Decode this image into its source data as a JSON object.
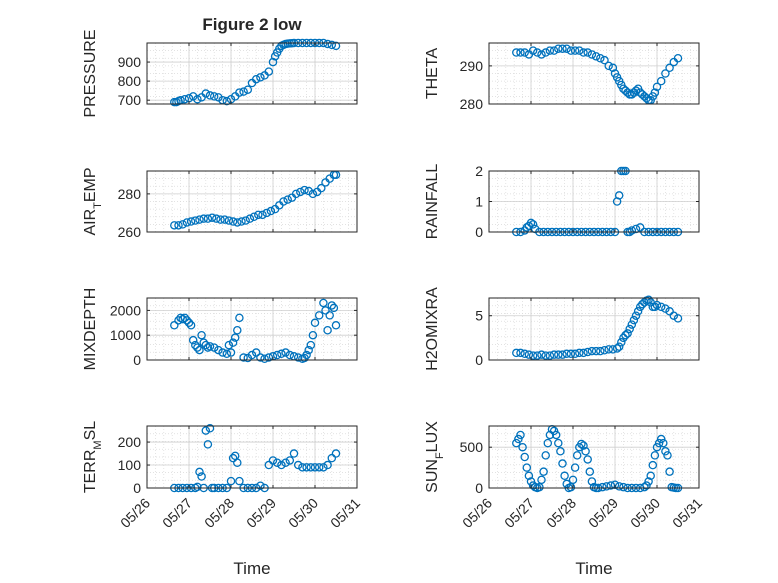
{
  "figure": {
    "title": "Figure 2 low",
    "xlabel": "Time",
    "marker_color": "#0072BD",
    "x_ticks": [
      "05/26",
      "05/27",
      "05/28",
      "05/29",
      "05/30",
      "05/31"
    ]
  },
  "chart_data": [
    {
      "type": "scatter",
      "ylabel": "PRESSURE",
      "ylim": [
        680,
        1000
      ],
      "yticks": [
        700,
        800,
        900
      ],
      "grid": true,
      "x": [
        0.65,
        0.7,
        0.75,
        0.8,
        0.9,
        1.0,
        1.1,
        1.2,
        1.3,
        1.4,
        1.5,
        1.6,
        1.7,
        1.8,
        1.9,
        2.0,
        2.1,
        2.2,
        2.3,
        2.4,
        2.5,
        2.6,
        2.7,
        2.8,
        2.9,
        3.0,
        3.05,
        3.1,
        3.15,
        3.2,
        3.25,
        3.3,
        3.35,
        3.4,
        3.45,
        3.5,
        3.6,
        3.7,
        3.8,
        3.9,
        4.0,
        4.1,
        4.2,
        4.3,
        4.4,
        4.5
      ],
      "y": [
        690,
        690,
        695,
        700,
        705,
        710,
        720,
        705,
        715,
        735,
        725,
        720,
        715,
        700,
        695,
        705,
        720,
        740,
        745,
        755,
        790,
        810,
        820,
        830,
        850,
        900,
        930,
        950,
        970,
        985,
        990,
        995,
        997,
        998,
        999,
        1000,
        1000,
        1000,
        1000,
        1000,
        1000,
        1000,
        1000,
        995,
        990,
        985
      ]
    },
    {
      "type": "scatter",
      "ylabel": "THETA",
      "ylim": [
        280,
        296
      ],
      "yticks": [
        280,
        290
      ],
      "grid": true,
      "x": [
        0.65,
        0.75,
        0.85,
        0.95,
        1.05,
        1.15,
        1.25,
        1.35,
        1.45,
        1.55,
        1.65,
        1.75,
        1.85,
        1.95,
        2.05,
        2.15,
        2.25,
        2.35,
        2.45,
        2.55,
        2.65,
        2.75,
        2.85,
        2.95,
        3.0,
        3.05,
        3.1,
        3.15,
        3.2,
        3.25,
        3.3,
        3.35,
        3.4,
        3.45,
        3.5,
        3.55,
        3.6,
        3.65,
        3.7,
        3.75,
        3.8,
        3.85,
        3.9,
        3.95,
        4.0,
        4.1,
        4.2,
        4.3,
        4.4,
        4.5
      ],
      "y": [
        293.5,
        293.5,
        293.5,
        293,
        294,
        293.5,
        293,
        293.5,
        294,
        294,
        294.5,
        294.5,
        294.5,
        294,
        294,
        294,
        293.5,
        293.5,
        293,
        292.5,
        292,
        291.5,
        290,
        289.5,
        288,
        287,
        286,
        285,
        284,
        283.5,
        283,
        282.5,
        282.5,
        283,
        283.5,
        284,
        283,
        282.5,
        282,
        281.5,
        281,
        281,
        282,
        283,
        284.5,
        286,
        288,
        289.5,
        291,
        292
      ]
    },
    {
      "type": "scatter",
      "ylabel": "AIR_TEMP",
      "ylim": [
        260,
        292
      ],
      "yticks": [
        260,
        280
      ],
      "grid": true,
      "x": [
        0.65,
        0.75,
        0.85,
        0.95,
        1.05,
        1.15,
        1.25,
        1.35,
        1.45,
        1.55,
        1.65,
        1.75,
        1.85,
        1.95,
        2.05,
        2.15,
        2.25,
        2.35,
        2.45,
        2.55,
        2.65,
        2.75,
        2.85,
        2.95,
        3.05,
        3.15,
        3.25,
        3.35,
        3.45,
        3.55,
        3.65,
        3.75,
        3.85,
        3.95,
        4.05,
        4.15,
        4.25,
        4.35,
        4.45,
        4.5
      ],
      "y": [
        263.5,
        263.5,
        264,
        265,
        265.5,
        266,
        266.5,
        267,
        267,
        267.5,
        267,
        266.5,
        266.5,
        266,
        265.5,
        265,
        265.5,
        266,
        267,
        268,
        269,
        269,
        270,
        271,
        272,
        274,
        276,
        277,
        278,
        280,
        281,
        282,
        281.5,
        280,
        281,
        283,
        286,
        288,
        290,
        290
      ]
    },
    {
      "type": "scatter",
      "ylabel": "RAINFALL",
      "ylim": [
        0,
        2
      ],
      "yticks": [
        0,
        1,
        2
      ],
      "grid": true,
      "x": [
        0.65,
        0.75,
        0.85,
        0.9,
        0.95,
        1.0,
        1.05,
        1.1,
        1.2,
        1.3,
        1.4,
        1.5,
        1.6,
        1.7,
        1.8,
        1.9,
        2.0,
        2.1,
        2.2,
        2.3,
        2.4,
        2.5,
        2.6,
        2.7,
        2.8,
        2.9,
        3.0,
        3.05,
        3.1,
        3.15,
        3.2,
        3.25,
        3.3,
        3.35,
        3.4,
        3.5,
        3.6,
        3.7,
        3.8,
        3.9,
        4.0,
        4.1,
        4.2,
        4.3,
        4.4,
        4.5
      ],
      "y": [
        0,
        0,
        0.05,
        0.15,
        0.2,
        0.3,
        0.25,
        0.1,
        0,
        0,
        0,
        0,
        0,
        0,
        0,
        0,
        0,
        0,
        0,
        0,
        0,
        0,
        0,
        0,
        0,
        0,
        0,
        1,
        1.2,
        2,
        2,
        2,
        0,
        0,
        0.05,
        0.1,
        0.15,
        0,
        0,
        0,
        0,
        0,
        0,
        0,
        0,
        0
      ]
    },
    {
      "type": "scatter",
      "ylabel": "MIXDEPTH",
      "ylim": [
        0,
        2500
      ],
      "yticks": [
        0,
        1000,
        2000
      ],
      "grid": true,
      "x": [
        0.65,
        0.75,
        0.8,
        0.85,
        0.9,
        0.95,
        1.0,
        1.05,
        1.1,
        1.15,
        1.2,
        1.25,
        1.3,
        1.35,
        1.4,
        1.45,
        1.5,
        1.6,
        1.7,
        1.8,
        1.9,
        1.95,
        2.0,
        2.05,
        2.1,
        2.15,
        2.2,
        2.3,
        2.4,
        2.5,
        2.6,
        2.7,
        2.8,
        2.9,
        3.0,
        3.1,
        3.2,
        3.3,
        3.4,
        3.5,
        3.6,
        3.7,
        3.75,
        3.8,
        3.85,
        3.9,
        3.95,
        4.0,
        4.1,
        4.2,
        4.25,
        4.3,
        4.35,
        4.4,
        4.45,
        4.5
      ],
      "y": [
        1400,
        1600,
        1700,
        1650,
        1700,
        1600,
        1500,
        1400,
        800,
        600,
        500,
        400,
        1000,
        700,
        600,
        500,
        550,
        500,
        400,
        300,
        250,
        600,
        300,
        700,
        900,
        1200,
        1700,
        100,
        80,
        200,
        300,
        100,
        50,
        100,
        150,
        200,
        250,
        300,
        200,
        150,
        100,
        50,
        80,
        200,
        400,
        600,
        1000,
        1500,
        1800,
        2300,
        2000,
        1200,
        1800,
        2200,
        2100,
        1400
      ]
    },
    {
      "type": "scatter",
      "ylabel": "H2OMIXRA",
      "ylim": [
        0,
        7
      ],
      "yticks": [
        0,
        5
      ],
      "grid": true,
      "x": [
        0.65,
        0.75,
        0.85,
        0.95,
        1.05,
        1.15,
        1.25,
        1.35,
        1.45,
        1.55,
        1.65,
        1.75,
        1.85,
        1.95,
        2.05,
        2.15,
        2.25,
        2.35,
        2.45,
        2.55,
        2.65,
        2.75,
        2.85,
        2.95,
        3.05,
        3.1,
        3.15,
        3.2,
        3.25,
        3.3,
        3.35,
        3.4,
        3.45,
        3.5,
        3.55,
        3.6,
        3.65,
        3.7,
        3.75,
        3.8,
        3.85,
        3.9,
        3.95,
        4.0,
        4.1,
        4.2,
        4.3,
        4.4,
        4.5
      ],
      "y": [
        0.8,
        0.8,
        0.7,
        0.6,
        0.5,
        0.5,
        0.6,
        0.5,
        0.5,
        0.6,
        0.6,
        0.6,
        0.7,
        0.7,
        0.7,
        0.8,
        0.8,
        0.9,
        1.0,
        1.0,
        1.0,
        1.1,
        1.2,
        1.2,
        1.3,
        1.5,
        2.0,
        2.5,
        2.8,
        3.0,
        3.5,
        4.0,
        4.5,
        5.0,
        5.5,
        6.0,
        6.3,
        6.5,
        6.7,
        6.8,
        6.5,
        6.0,
        6.0,
        6.2,
        6.0,
        5.8,
        5.5,
        5.0,
        4.7
      ]
    },
    {
      "type": "scatter",
      "ylabel": "TERR_MSL",
      "ylim": [
        0,
        270
      ],
      "yticks": [
        0,
        100,
        200
      ],
      "grid": true,
      "x": [
        0.65,
        0.75,
        0.85,
        0.95,
        1.05,
        1.15,
        1.2,
        1.25,
        1.3,
        1.35,
        1.4,
        1.45,
        1.5,
        1.55,
        1.6,
        1.7,
        1.8,
        1.9,
        2.0,
        2.05,
        2.1,
        2.15,
        2.2,
        2.3,
        2.4,
        2.5,
        2.6,
        2.7,
        2.8,
        2.9,
        3.0,
        3.1,
        3.2,
        3.3,
        3.4,
        3.5,
        3.6,
        3.7,
        3.8,
        3.9,
        4.0,
        4.1,
        4.2,
        4.3,
        4.4,
        4.5
      ],
      "y": [
        0,
        0,
        0,
        0,
        0,
        0,
        5,
        70,
        50,
        0,
        250,
        190,
        260,
        0,
        0,
        0,
        0,
        0,
        30,
        130,
        140,
        110,
        30,
        0,
        0,
        0,
        0,
        10,
        0,
        100,
        120,
        110,
        100,
        110,
        120,
        150,
        100,
        90,
        90,
        90,
        90,
        90,
        90,
        100,
        130,
        150
      ]
    },
    {
      "type": "scatter",
      "ylabel": "SUN_FLUX",
      "ylim": [
        0,
        760
      ],
      "yticks": [
        0,
        500
      ],
      "grid": true,
      "x": [
        0.65,
        0.7,
        0.75,
        0.8,
        0.85,
        0.9,
        0.95,
        1.0,
        1.05,
        1.1,
        1.15,
        1.2,
        1.25,
        1.3,
        1.35,
        1.4,
        1.45,
        1.5,
        1.55,
        1.6,
        1.65,
        1.7,
        1.75,
        1.8,
        1.85,
        1.9,
        1.95,
        2.0,
        2.05,
        2.1,
        2.15,
        2.2,
        2.25,
        2.3,
        2.35,
        2.4,
        2.45,
        2.5,
        2.55,
        2.6,
        2.7,
        2.8,
        2.9,
        3.0,
        3.1,
        3.2,
        3.3,
        3.4,
        3.5,
        3.6,
        3.7,
        3.75,
        3.8,
        3.85,
        3.9,
        3.95,
        4.0,
        4.05,
        4.1,
        4.15,
        4.2,
        4.25,
        4.3,
        4.35,
        4.4,
        4.45,
        4.5
      ],
      "y": [
        550,
        600,
        650,
        500,
        380,
        250,
        150,
        80,
        30,
        10,
        0,
        10,
        100,
        200,
        400,
        550,
        650,
        720,
        700,
        650,
        550,
        450,
        300,
        150,
        50,
        0,
        10,
        100,
        250,
        400,
        500,
        540,
        520,
        450,
        350,
        200,
        80,
        10,
        0,
        0,
        10,
        20,
        30,
        40,
        20,
        10,
        0,
        0,
        0,
        0,
        10,
        30,
        80,
        150,
        280,
        400,
        500,
        550,
        600,
        550,
        450,
        400,
        200,
        10,
        5,
        0,
        0
      ]
    }
  ]
}
